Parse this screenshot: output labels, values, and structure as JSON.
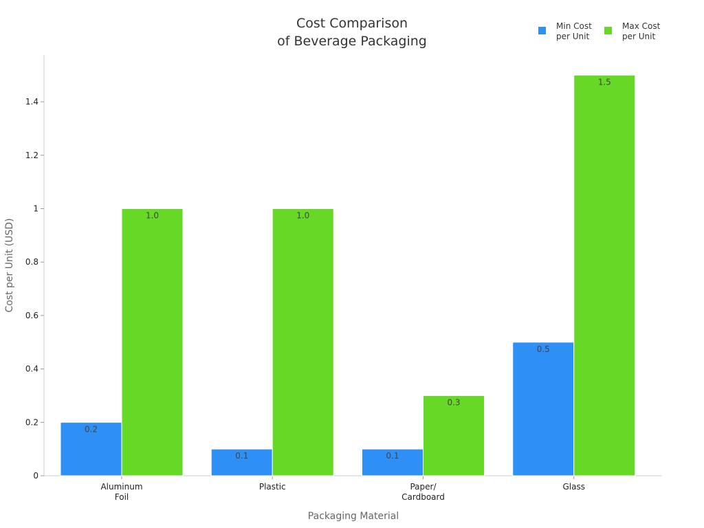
{
  "chart_data": {
    "type": "bar",
    "title": [
      "Cost Comparison",
      "of Beverage Packaging"
    ],
    "xlabel": "Packaging Material",
    "ylabel": "Cost per Unit (USD)",
    "categories": [
      [
        "Aluminum",
        "Foil"
      ],
      [
        "Plastic"
      ],
      [
        "Paper/",
        "Cardboard"
      ],
      [
        "Glass"
      ]
    ],
    "series": [
      {
        "name": [
          "Min Cost",
          "per Unit"
        ],
        "color": "#2E90F5",
        "values": [
          0.2,
          0.1,
          0.1,
          0.5
        ],
        "labels": [
          "0.2",
          "0.1",
          "0.1",
          "0.5"
        ]
      },
      {
        "name": [
          "Max Cost",
          "per Unit"
        ],
        "color": "#66D926",
        "values": [
          1.0,
          1.0,
          0.3,
          1.5
        ],
        "labels": [
          "1.0",
          "1.0",
          "0.3",
          "1.5"
        ]
      }
    ],
    "ylim": [
      0,
      1.5
    ],
    "yticks": [
      0,
      0.2,
      0.4,
      0.6,
      0.8,
      1,
      1.2,
      1.4
    ],
    "ytick_labels": [
      "0",
      "0.2",
      "0.4",
      "0.6",
      "0.8",
      "1",
      "1.2",
      "1.4"
    ],
    "grid": false,
    "legend_position": "top-right"
  }
}
